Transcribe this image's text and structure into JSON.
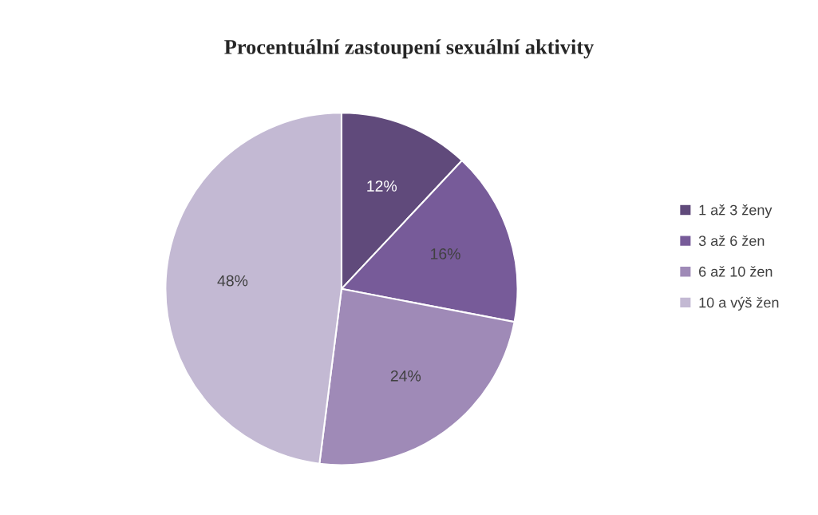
{
  "chart_data": {
    "type": "pie",
    "title": "Procentuální zastoupení sexuální aktivity",
    "categories": [
      "1 až 3 ženy",
      "3 až 6 žen",
      "6 až 10 žen",
      "10 a výš žen"
    ],
    "values": [
      12,
      16,
      24,
      48
    ],
    "colors": [
      "#604a7b",
      "#775b99",
      "#9f8ab7",
      "#c3b9d3"
    ],
    "value_labels": [
      "12%",
      "16%",
      "24%",
      "48%"
    ],
    "legend": "right"
  }
}
